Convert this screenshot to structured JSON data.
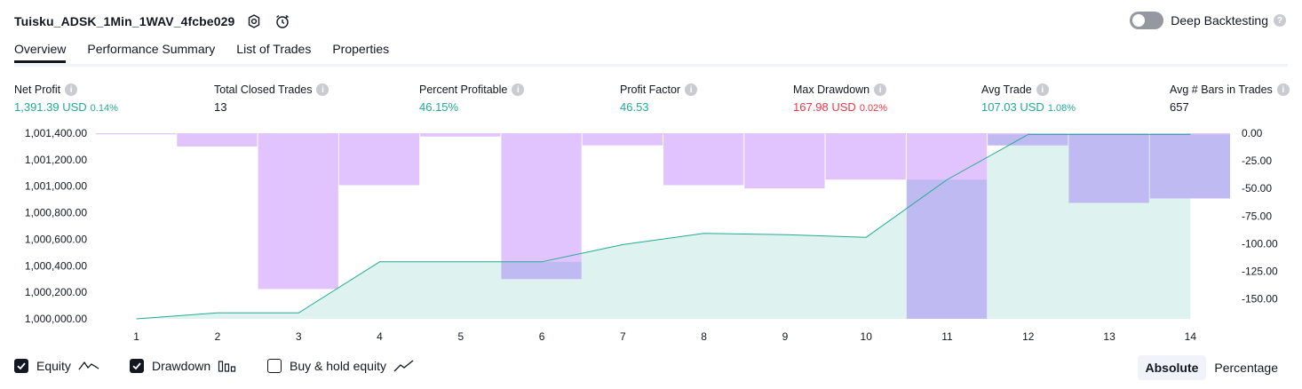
{
  "header": {
    "title": "Tuisku_ADSK_1Min_1WAV_4fcbe029",
    "deep_backtesting_label": "Deep Backtesting",
    "deep_backtesting_on": false
  },
  "tabs": [
    {
      "label": "Overview",
      "active": true
    },
    {
      "label": "Performance Summary",
      "active": false
    },
    {
      "label": "List of Trades",
      "active": false
    },
    {
      "label": "Properties",
      "active": false
    }
  ],
  "metrics": [
    {
      "label": "Net Profit",
      "value": "1,391.39 USD",
      "pct": "0.14%",
      "color": "green"
    },
    {
      "label": "Total Closed Trades",
      "value": "13",
      "pct": "",
      "color": "dark"
    },
    {
      "label": "Percent Profitable",
      "value": "46.15%",
      "pct": "",
      "color": "green"
    },
    {
      "label": "Profit Factor",
      "value": "46.53",
      "pct": "",
      "color": "green"
    },
    {
      "label": "Max Drawdown",
      "value": "167.98 USD",
      "pct": "0.02%",
      "color": "red"
    },
    {
      "label": "Avg Trade",
      "value": "107.03 USD",
      "pct": "1.08%",
      "color": "green"
    },
    {
      "label": "Avg # Bars in Trades",
      "value": "657",
      "pct": "",
      "color": "dark"
    }
  ],
  "chart_data": {
    "type": "area",
    "x": [
      1,
      2,
      3,
      4,
      5,
      6,
      7,
      8,
      9,
      10,
      11,
      12,
      13,
      14
    ],
    "left_axis": {
      "ticks": [
        "1,001,400.00",
        "1,001,200.00",
        "1,001,000.00",
        "1,000,800.00",
        "1,000,600.00",
        "1,000,400.00",
        "1,000,200.00",
        "1,000,000.00"
      ],
      "ylim": [
        1000000,
        1001400
      ]
    },
    "right_axis": {
      "ticks": [
        "0.00",
        "-25.00",
        "-50.00",
        "-75.00",
        "-100.00",
        "-125.00",
        "-150.00"
      ],
      "ylim": [
        -168,
        0
      ]
    },
    "series": [
      {
        "name": "Equity",
        "type": "area",
        "axis": "left",
        "values": [
          1000000,
          1000045,
          1000045,
          1000430,
          1000430,
          1000430,
          1000560,
          1000645,
          1000635,
          1000615,
          1001050,
          1001391,
          1001391,
          1001391
        ]
      },
      {
        "name": "Drawdown",
        "type": "bar",
        "axis": "right",
        "values": [
          -1,
          -12,
          -141,
          -47,
          -3,
          -132,
          -11,
          -47,
          -50,
          -42,
          -168,
          -11,
          -63,
          -59
        ]
      }
    ],
    "colors": {
      "equity_line": "#22ab94",
      "equity_fill": "#22ab94",
      "drawdown_bar": "#e1c4fd",
      "drawdown_overlap": "#b4b7ee"
    }
  },
  "legend": {
    "equity_label": "Equity",
    "equity_checked": true,
    "drawdown_label": "Drawdown",
    "drawdown_checked": true,
    "buyhold_label": "Buy & hold equity",
    "buyhold_checked": false
  },
  "view_toggle": {
    "absolute_label": "Absolute",
    "percentage_label": "Percentage",
    "selected": "Absolute"
  }
}
